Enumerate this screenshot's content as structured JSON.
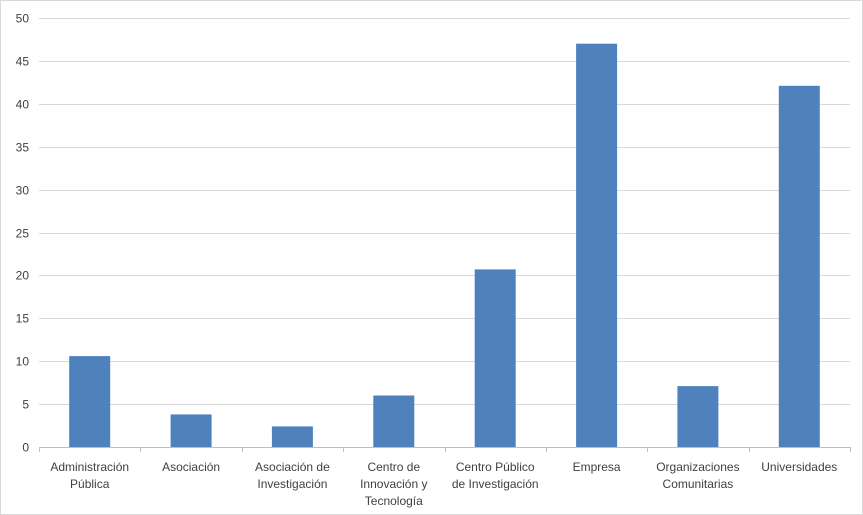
{
  "chart_data": {
    "type": "bar",
    "categories": [
      [
        "Administración",
        "Pública"
      ],
      [
        "Asociación"
      ],
      [
        "Asociación de",
        "Investigación"
      ],
      [
        "Centro de",
        "Innovación y",
        "Tecnología"
      ],
      [
        "Centro Público",
        "de Investigación"
      ],
      [
        "Empresa"
      ],
      [
        "Organizaciones",
        "Comunitarias"
      ],
      [
        "Universidades"
      ]
    ],
    "values": [
      10.6,
      3.8,
      2.4,
      6.0,
      20.7,
      47.0,
      7.1,
      42.1
    ],
    "ylim": [
      0,
      50
    ],
    "yticks": [
      0,
      5,
      10,
      15,
      20,
      25,
      30,
      35,
      40,
      45,
      50
    ],
    "grid": true,
    "bar_color": "#4f81bd",
    "title": "",
    "xlabel": "",
    "ylabel": ""
  }
}
